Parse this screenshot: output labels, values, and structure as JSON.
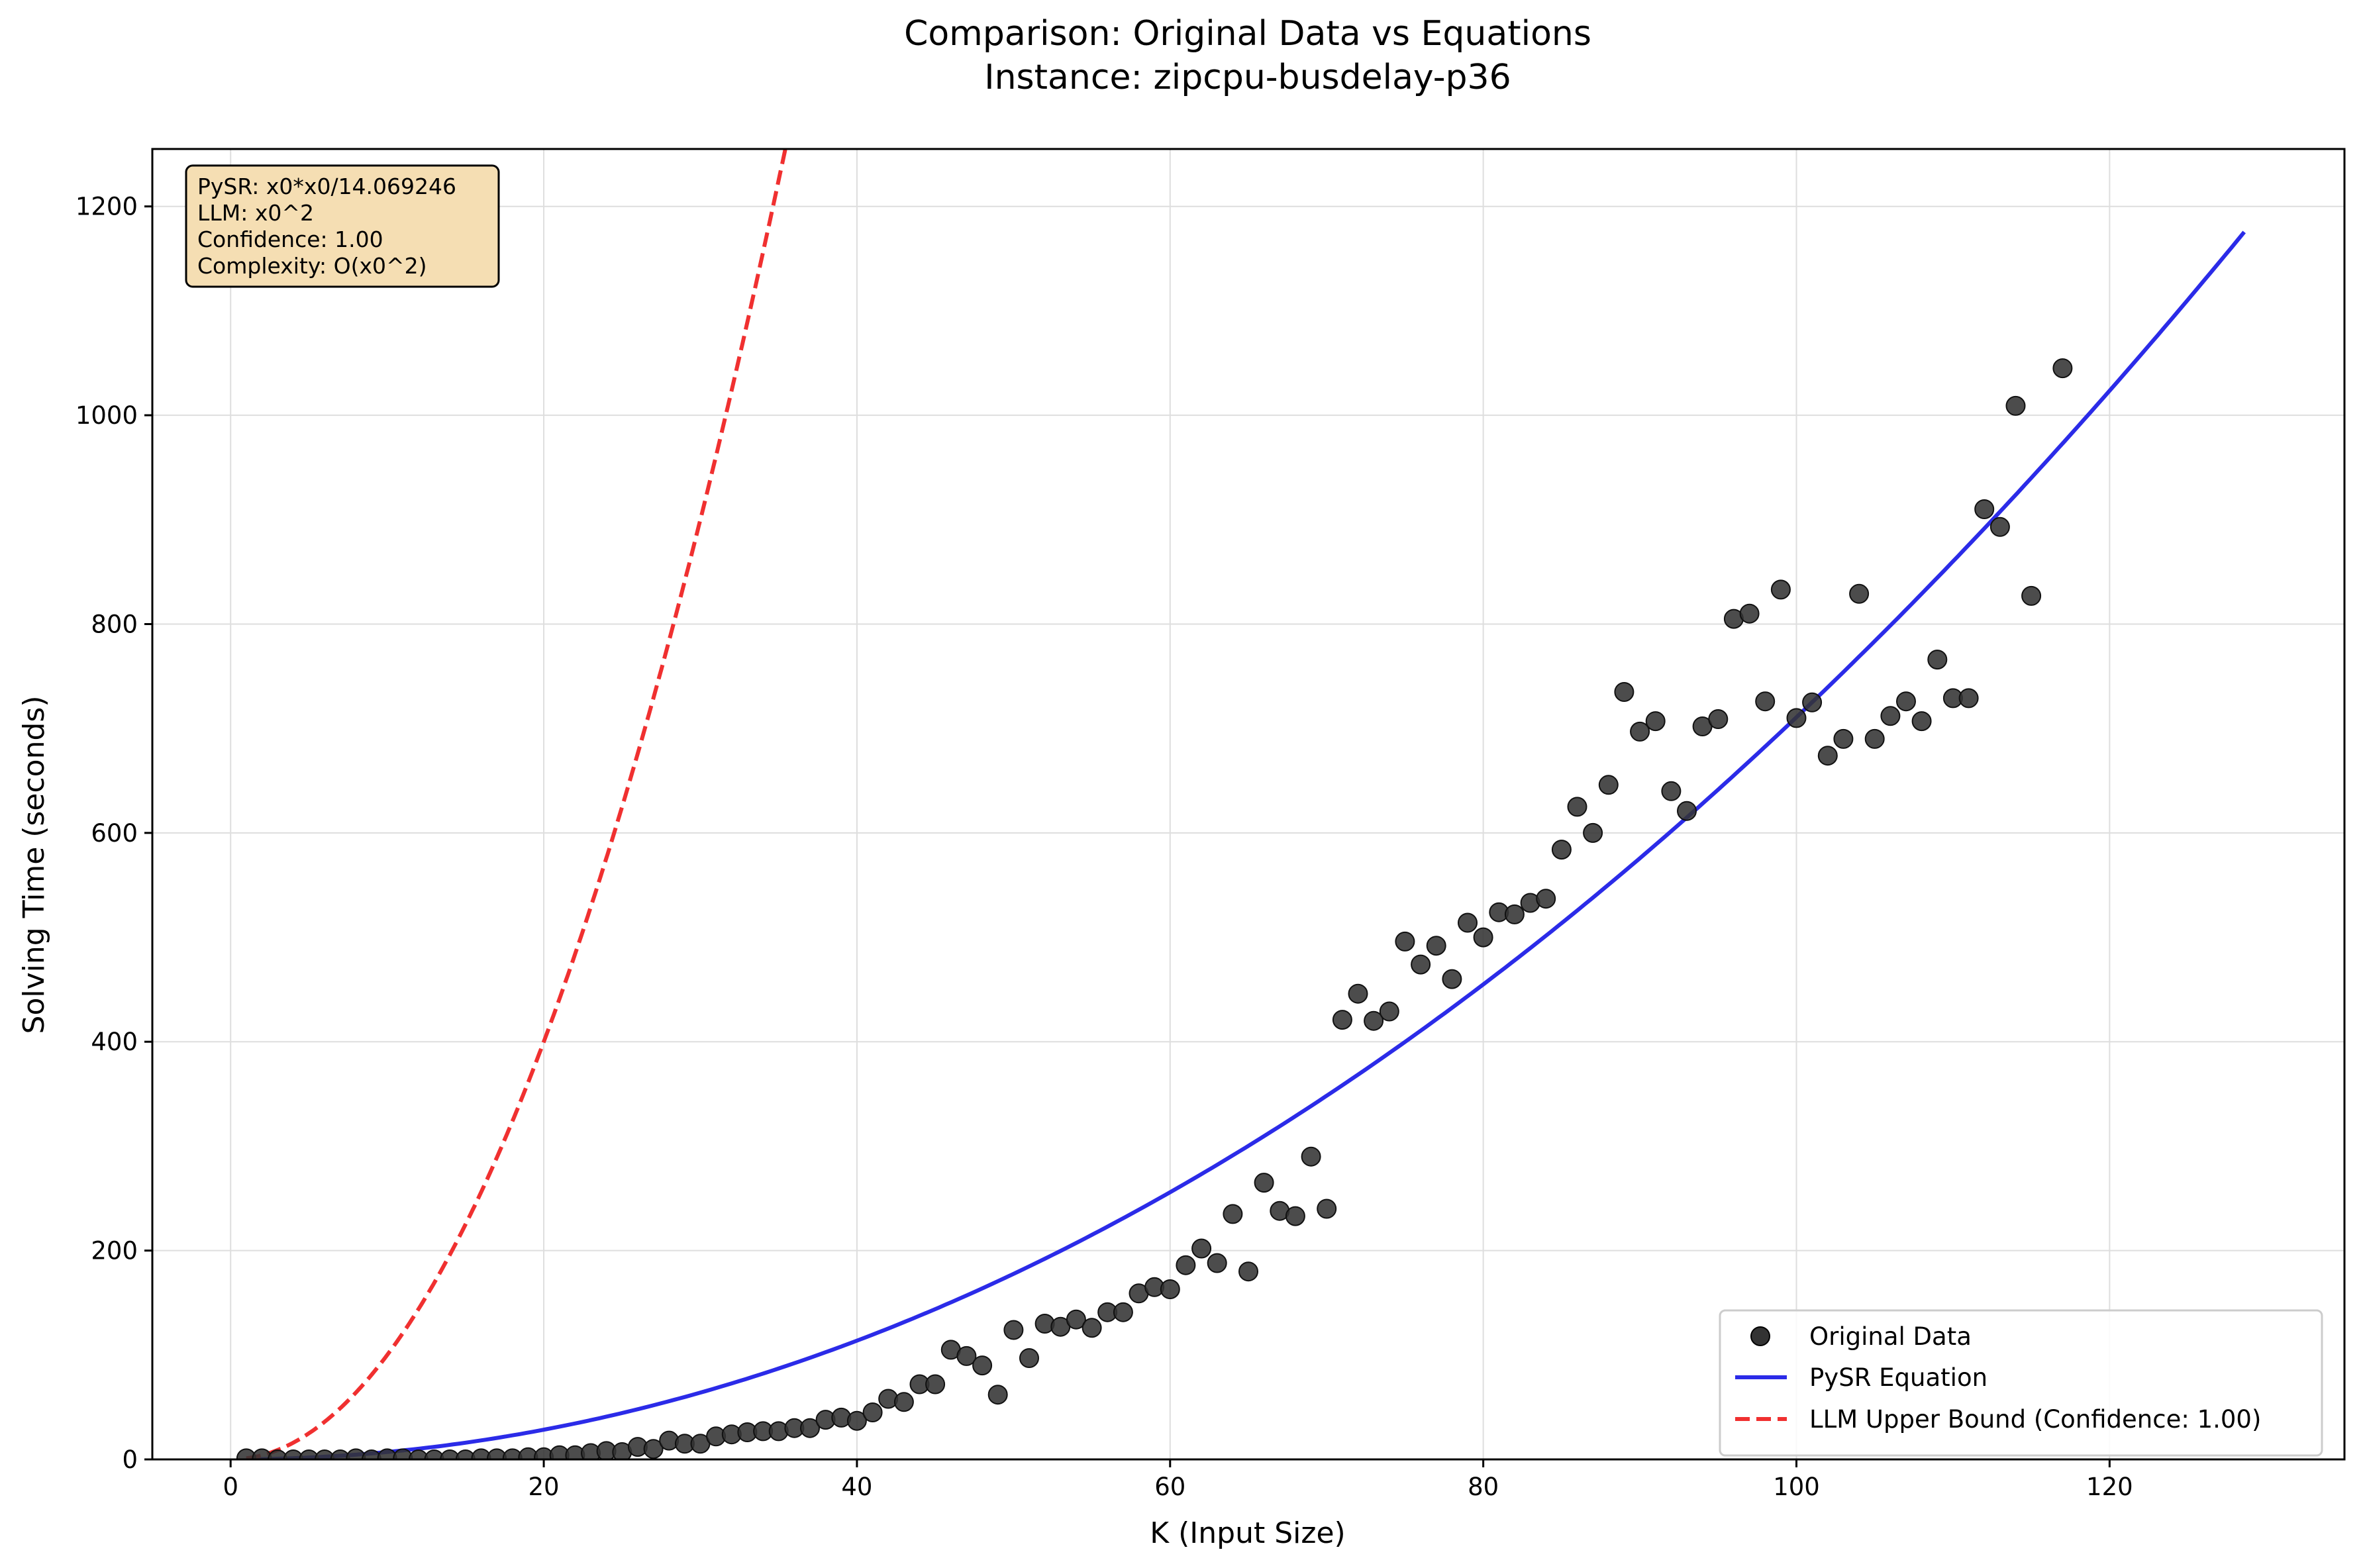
{
  "figure": {
    "title_line1": "Comparison: Original Data vs Equations",
    "title_line2": "Instance: zipcpu-busdelay-p36"
  },
  "annotation": {
    "lines": [
      "PySR: x0*x0/14.069246",
      "LLM: x0^2",
      "Confidence: 1.00",
      "Complexity: O(x0^2)"
    ],
    "background": "#f5deb3"
  },
  "legend": {
    "placement": "lower-right",
    "entries": [
      {
        "label": "Original Data",
        "kind": "marker",
        "color": "#333333"
      },
      {
        "label": "PySR Equation",
        "kind": "line",
        "color": "#2b2be8"
      },
      {
        "label": "LLM Upper Bound (Confidence: 1.00)",
        "kind": "dashed-line",
        "color": "#f03030"
      }
    ]
  },
  "chart_data": {
    "type": "scatter",
    "xlabel": "K (Input Size)",
    "ylabel": "Solving Time (seconds)",
    "xlim": [
      -5,
      135
    ],
    "ylim": [
      0,
      1255
    ],
    "xticks": [
      0,
      20,
      40,
      60,
      80,
      100,
      120
    ],
    "yticks": [
      0,
      200,
      400,
      600,
      800,
      1000,
      1200
    ],
    "grid": true,
    "series": [
      {
        "name": "Original Data",
        "kind": "scatter",
        "color": "#333333",
        "x": [
          1,
          2,
          3,
          4,
          5,
          6,
          7,
          8,
          9,
          10,
          11,
          12,
          13,
          14,
          15,
          16,
          17,
          18,
          19,
          20,
          21,
          22,
          23,
          24,
          25,
          26,
          27,
          28,
          29,
          30,
          31,
          32,
          33,
          34,
          35,
          36,
          37,
          38,
          39,
          40,
          41,
          42,
          43,
          44,
          45,
          46,
          47,
          48,
          49,
          50,
          51,
          52,
          53,
          54,
          55,
          56,
          57,
          58,
          59,
          60,
          61,
          62,
          63,
          64,
          65,
          66,
          67,
          68,
          69,
          70,
          71,
          72,
          73,
          74,
          75,
          76,
          77,
          78,
          79,
          80,
          81,
          82,
          83,
          84,
          85,
          86,
          87,
          88,
          89,
          90,
          91,
          92,
          93,
          94,
          95,
          96,
          97,
          98,
          99,
          100,
          101,
          102,
          103,
          104,
          105,
          106,
          107,
          108,
          109,
          110,
          111,
          112,
          113,
          114,
          115,
          117
        ],
        "y": [
          1,
          1,
          0,
          0,
          0,
          0,
          0,
          1,
          0,
          1,
          1,
          0,
          0,
          0,
          0,
          1,
          1,
          1,
          2,
          2,
          4,
          4,
          6,
          8,
          7,
          12,
          10,
          18,
          15,
          15,
          22,
          24,
          26,
          27,
          27,
          30,
          30,
          38,
          40,
          37,
          45,
          58,
          55,
          72,
          72,
          105,
          99,
          90,
          62,
          124,
          97,
          130,
          127,
          134,
          126,
          141,
          141,
          159,
          165,
          163,
          186,
          202,
          188,
          235,
          180,
          265,
          238,
          233,
          290,
          240,
          421,
          446,
          420,
          429,
          496,
          474,
          492,
          460,
          514,
          500,
          524,
          522,
          533,
          537,
          584,
          625,
          600,
          646,
          735,
          697,
          707,
          640,
          621,
          702,
          709,
          805,
          810,
          726,
          833,
          710,
          725,
          674,
          690,
          829,
          690,
          712,
          726,
          707,
          766,
          729,
          729,
          910,
          893,
          1009,
          827,
          1045
        ]
      },
      {
        "name": "PySR Equation",
        "kind": "line",
        "color": "#2b2be8",
        "equation": "x0*x0/14.069246",
        "x_range": [
          1,
          128.6
        ]
      },
      {
        "name": "LLM Upper Bound (Confidence: 1.00)",
        "kind": "dashed-line",
        "color": "#f03030",
        "equation": "x0^2",
        "x_range": [
          1,
          35.43
        ]
      }
    ]
  }
}
